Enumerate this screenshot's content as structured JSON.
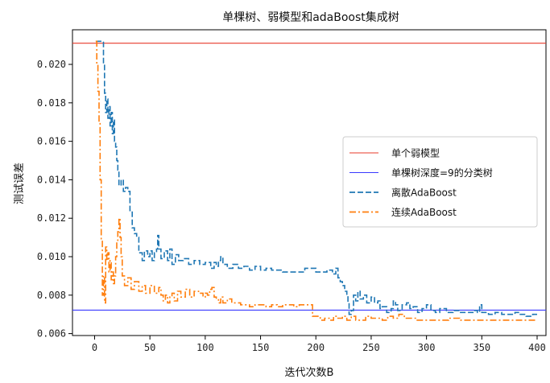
{
  "chart_data": {
    "type": "line",
    "title": "单棵树、弱模型和adaBoost集成树",
    "xlabel": "迭代次数B",
    "ylabel": "测试误差",
    "xlim": [
      -20,
      408
    ],
    "ylim": [
      0.0059,
      0.0218
    ],
    "xticks": [
      0,
      50,
      100,
      150,
      200,
      250,
      300,
      350,
      400
    ],
    "yticks": [
      0.006,
      0.008,
      0.01,
      0.012,
      0.014,
      0.016,
      0.018,
      0.02
    ],
    "ytick_labels": [
      "0.006",
      "0.008",
      "0.010",
      "0.012",
      "0.014",
      "0.016",
      "0.018",
      "0.020"
    ],
    "legend_position": "center-right",
    "grid": false,
    "hlines": [
      {
        "name": "单个弱模型",
        "y": 0.0211,
        "color": "#e8392a"
      },
      {
        "name": "单棵树深度=9的分类树",
        "y": 0.00722,
        "color": "#3a3aff"
      }
    ],
    "series": [
      {
        "name": "离散AdaBoost",
        "color": "#1f77b4",
        "dash": "7,3",
        "points": [
          [
            1,
            0.0212
          ],
          [
            5,
            0.0212
          ],
          [
            7,
            0.0212
          ],
          [
            8,
            0.02
          ],
          [
            9,
            0.0185
          ],
          [
            10,
            0.0175
          ],
          [
            11,
            0.0182
          ],
          [
            12,
            0.0172
          ],
          [
            13,
            0.0178
          ],
          [
            14,
            0.0168
          ],
          [
            15,
            0.0175
          ],
          [
            16,
            0.0164
          ],
          [
            17,
            0.0171
          ],
          [
            18,
            0.016
          ],
          [
            19,
            0.0157
          ],
          [
            20,
            0.015
          ],
          [
            21,
            0.0145
          ],
          [
            22,
            0.0137
          ],
          [
            24,
            0.014
          ],
          [
            26,
            0.0134
          ],
          [
            28,
            0.0136
          ],
          [
            30,
            0.0134
          ],
          [
            32,
            0.0124
          ],
          [
            34,
            0.0115
          ],
          [
            36,
            0.0112
          ],
          [
            38,
            0.011
          ],
          [
            40,
            0.0102
          ],
          [
            43,
            0.0098
          ],
          [
            45,
            0.0103
          ],
          [
            48,
            0.01
          ],
          [
            50,
            0.0103
          ],
          [
            52,
            0.0098
          ],
          [
            54,
            0.0102
          ],
          [
            56,
            0.0104
          ],
          [
            57,
            0.0111
          ],
          [
            58,
            0.0104
          ],
          [
            60,
            0.0099
          ],
          [
            63,
            0.0103
          ],
          [
            66,
            0.0098
          ],
          [
            68,
            0.0104
          ],
          [
            70,
            0.0096
          ],
          [
            73,
            0.0101
          ],
          [
            76,
            0.0098
          ],
          [
            80,
            0.0099
          ],
          [
            85,
            0.0096
          ],
          [
            90,
            0.0098
          ],
          [
            95,
            0.0096
          ],
          [
            100,
            0.0097
          ],
          [
            105,
            0.0094
          ],
          [
            108,
            0.0097
          ],
          [
            110,
            0.0095
          ],
          [
            112,
            0.0098
          ],
          [
            114,
            0.01
          ],
          [
            116,
            0.0096
          ],
          [
            120,
            0.0094
          ],
          [
            125,
            0.0096
          ],
          [
            130,
            0.0094
          ],
          [
            135,
            0.0095
          ],
          [
            140,
            0.0093
          ],
          [
            145,
            0.0095
          ],
          [
            150,
            0.0093
          ],
          [
            155,
            0.0094
          ],
          [
            160,
            0.0093
          ],
          [
            170,
            0.0092
          ],
          [
            180,
            0.0092
          ],
          [
            190,
            0.0094
          ],
          [
            200,
            0.0092
          ],
          [
            210,
            0.0093
          ],
          [
            215,
            0.0091
          ],
          [
            218,
            0.0094
          ],
          [
            220,
            0.0089
          ],
          [
            222,
            0.0087
          ],
          [
            224,
            0.0085
          ],
          [
            226,
            0.0082
          ],
          [
            228,
            0.008
          ],
          [
            229,
            0.0076
          ],
          [
            230,
            0.007
          ],
          [
            232,
            0.0072
          ],
          [
            234,
            0.008
          ],
          [
            236,
            0.0077
          ],
          [
            238,
            0.0082
          ],
          [
            240,
            0.0078
          ],
          [
            243,
            0.008
          ],
          [
            246,
            0.0076
          ],
          [
            250,
            0.0079
          ],
          [
            253,
            0.0076
          ],
          [
            256,
            0.0077
          ],
          [
            258,
            0.0073
          ],
          [
            260,
            0.0074
          ],
          [
            264,
            0.0071
          ],
          [
            268,
            0.0073
          ],
          [
            270,
            0.0077
          ],
          [
            272,
            0.0075
          ],
          [
            274,
            0.0072
          ],
          [
            278,
            0.0075
          ],
          [
            282,
            0.0076
          ],
          [
            285,
            0.0073
          ],
          [
            288,
            0.0074
          ],
          [
            292,
            0.0071
          ],
          [
            296,
            0.0073
          ],
          [
            300,
            0.0075
          ],
          [
            304,
            0.0072
          ],
          [
            308,
            0.0071
          ],
          [
            312,
            0.0073
          ],
          [
            318,
            0.0071
          ],
          [
            324,
            0.0072
          ],
          [
            330,
            0.0071
          ],
          [
            336,
            0.0071
          ],
          [
            342,
            0.0072
          ],
          [
            346,
            0.0071
          ],
          [
            348,
            0.0075
          ],
          [
            350,
            0.0071
          ],
          [
            356,
            0.007
          ],
          [
            362,
            0.0071
          ],
          [
            368,
            0.007
          ],
          [
            374,
            0.007
          ],
          [
            380,
            0.0071
          ],
          [
            384,
            0.007
          ],
          [
            390,
            0.0069
          ],
          [
            396,
            0.007
          ],
          [
            400,
            0.007
          ]
        ]
      },
      {
        "name": "连续AdaBoost",
        "color": "#ff7f0e",
        "dash": "8,3,2,3",
        "points": [
          [
            1,
            0.0212
          ],
          [
            2,
            0.02
          ],
          [
            3,
            0.0186
          ],
          [
            4,
            0.017
          ],
          [
            5,
            0.014
          ],
          [
            6,
            0.0108
          ],
          [
            7,
            0.008
          ],
          [
            8,
            0.009
          ],
          [
            9,
            0.0076
          ],
          [
            10,
            0.0105
          ],
          [
            11,
            0.0098
          ],
          [
            12,
            0.0102
          ],
          [
            13,
            0.0092
          ],
          [
            14,
            0.0098
          ],
          [
            15,
            0.0088
          ],
          [
            16,
            0.0092
          ],
          [
            17,
            0.0086
          ],
          [
            18,
            0.009
          ],
          [
            19,
            0.01
          ],
          [
            20,
            0.0108
          ],
          [
            21,
            0.0113
          ],
          [
            22,
            0.012
          ],
          [
            23,
            0.011
          ],
          [
            24,
            0.01
          ],
          [
            25,
            0.009
          ],
          [
            27,
            0.0085
          ],
          [
            30,
            0.0089
          ],
          [
            33,
            0.0083
          ],
          [
            36,
            0.0087
          ],
          [
            40,
            0.0082
          ],
          [
            43,
            0.0085
          ],
          [
            46,
            0.0081
          ],
          [
            50,
            0.0085
          ],
          [
            54,
            0.0081
          ],
          [
            58,
            0.0084
          ],
          [
            60,
            0.008
          ],
          [
            62,
            0.0077
          ],
          [
            64,
            0.008
          ],
          [
            66,
            0.0076
          ],
          [
            68,
            0.0079
          ],
          [
            70,
            0.0081
          ],
          [
            72,
            0.0077
          ],
          [
            75,
            0.0082
          ],
          [
            78,
            0.0079
          ],
          [
            82,
            0.0083
          ],
          [
            86,
            0.0079
          ],
          [
            90,
            0.0082
          ],
          [
            94,
            0.0081
          ],
          [
            98,
            0.0079
          ],
          [
            100,
            0.0081
          ],
          [
            102,
            0.008
          ],
          [
            104,
            0.0083
          ],
          [
            106,
            0.0084
          ],
          [
            108,
            0.0079
          ],
          [
            110,
            0.0078
          ],
          [
            112,
            0.0076
          ],
          [
            114,
            0.0079
          ],
          [
            116,
            0.0076
          ],
          [
            120,
            0.0078
          ],
          [
            124,
            0.0076
          ],
          [
            128,
            0.0076
          ],
          [
            132,
            0.0075
          ],
          [
            136,
            0.0075
          ],
          [
            140,
            0.0074
          ],
          [
            145,
            0.0075
          ],
          [
            150,
            0.0075
          ],
          [
            155,
            0.0074
          ],
          [
            160,
            0.0075
          ],
          [
            165,
            0.0074
          ],
          [
            170,
            0.0075
          ],
          [
            175,
            0.0075
          ],
          [
            180,
            0.0074
          ],
          [
            185,
            0.0075
          ],
          [
            190,
            0.0075
          ],
          [
            195,
            0.0075
          ],
          [
            197,
            0.0069
          ],
          [
            200,
            0.0069
          ],
          [
            204,
            0.0067
          ],
          [
            208,
            0.0068
          ],
          [
            212,
            0.0067
          ],
          [
            216,
            0.0069
          ],
          [
            220,
            0.0068
          ],
          [
            224,
            0.0069
          ],
          [
            228,
            0.0067
          ],
          [
            232,
            0.0069
          ],
          [
            236,
            0.0067
          ],
          [
            240,
            0.0067
          ],
          [
            245,
            0.0069
          ],
          [
            250,
            0.0068
          ],
          [
            255,
            0.0068
          ],
          [
            260,
            0.0067
          ],
          [
            265,
            0.0069
          ],
          [
            270,
            0.0068
          ],
          [
            275,
            0.007
          ],
          [
            280,
            0.0068
          ],
          [
            285,
            0.0068
          ],
          [
            290,
            0.0067
          ],
          [
            300,
            0.0067
          ],
          [
            310,
            0.0067
          ],
          [
            320,
            0.0068
          ],
          [
            330,
            0.0067
          ],
          [
            340,
            0.0067
          ],
          [
            350,
            0.0067
          ],
          [
            360,
            0.0067
          ],
          [
            370,
            0.0067
          ],
          [
            380,
            0.0067
          ],
          [
            390,
            0.0067
          ],
          [
            400,
            0.0067
          ]
        ]
      }
    ]
  }
}
